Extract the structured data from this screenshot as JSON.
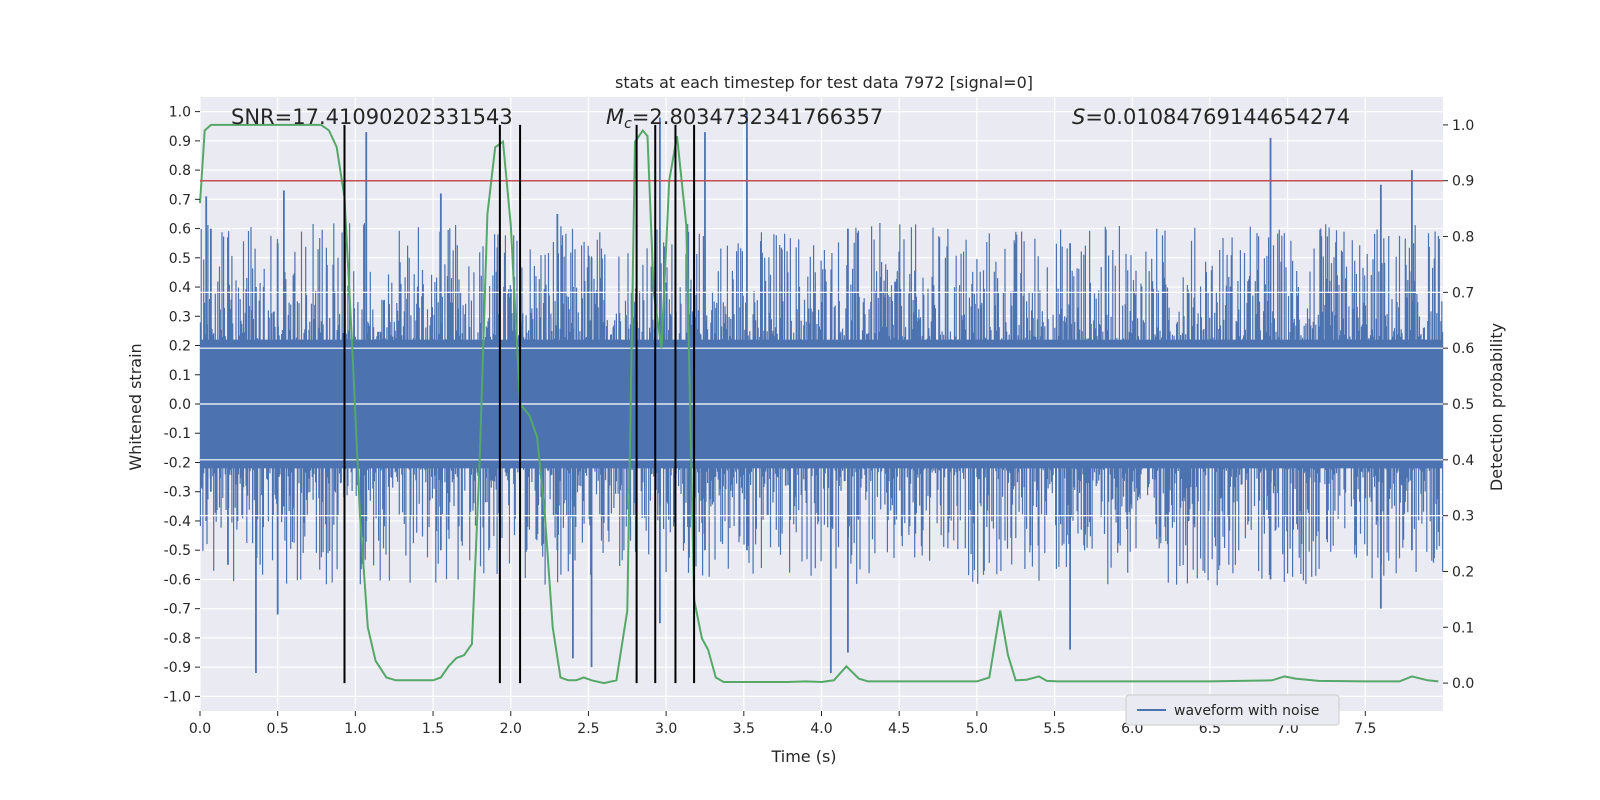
{
  "chart_data": {
    "type": "line",
    "title": "stats at each timestep for test data 7972 [signal=0]",
    "xlabel": "Time (s)",
    "ylabel_left": "Whitened strain",
    "ylabel_right": "Detection probability",
    "xlim": [
      0.0,
      8.0
    ],
    "ylim_left": [
      -1.05,
      1.05
    ],
    "ylim_right": [
      -0.05,
      1.05
    ],
    "xticks": [
      "0.0",
      "0.5",
      "1.0",
      "1.5",
      "2.0",
      "2.5",
      "3.0",
      "3.5",
      "4.0",
      "4.5",
      "5.0",
      "5.5",
      "6.0",
      "6.5",
      "7.0",
      "7.5"
    ],
    "yticks_left": [
      "-1.0",
      "-0.9",
      "-0.8",
      "-0.7",
      "-0.6",
      "-0.5",
      "-0.4",
      "-0.3",
      "-0.2",
      "-0.1",
      "0.0",
      "0.1",
      "0.2",
      "0.3",
      "0.4",
      "0.5",
      "0.6",
      "0.7",
      "0.8",
      "0.9",
      "1.0"
    ],
    "yticks_right": [
      "0.0",
      "0.1",
      "0.2",
      "0.3",
      "0.4",
      "0.5",
      "0.6",
      "0.7",
      "0.8",
      "0.9",
      "1.0"
    ],
    "annotations": {
      "snr": "SNR=17.41090202331543",
      "mc_symbol": "M",
      "mc_sub": "c",
      "mc_value": "=2.8034732341766357",
      "s_symbol": "S",
      "s_value": "=0.01084769144654274"
    },
    "threshold": 0.9,
    "event_lines": [
      0.93,
      1.93,
      2.06,
      2.81,
      2.93,
      3.06,
      3.18
    ],
    "waveform_spikes": [
      {
        "x": 0.04,
        "lo": -0.4,
        "hi": 0.71
      },
      {
        "x": 0.07,
        "lo": -0.3,
        "hi": 0.6
      },
      {
        "x": 0.18,
        "lo": -0.55,
        "hi": 0.57
      },
      {
        "x": 0.36,
        "lo": -0.92,
        "hi": 0.4
      },
      {
        "x": 0.5,
        "lo": -0.72,
        "hi": 0.55
      },
      {
        "x": 0.54,
        "lo": -0.35,
        "hi": 0.73
      },
      {
        "x": 1.07,
        "lo": -0.4,
        "hi": 0.93
      },
      {
        "x": 1.55,
        "lo": -0.5,
        "hi": 0.72
      },
      {
        "x": 2.3,
        "lo": -0.5,
        "hi": 0.65
      },
      {
        "x": 2.4,
        "lo": -0.87,
        "hi": 0.4
      },
      {
        "x": 2.52,
        "lo": -0.9,
        "hi": 0.5
      },
      {
        "x": 2.96,
        "lo": -0.75,
        "hi": 0.98
      },
      {
        "x": 3.18,
        "lo": -0.7,
        "hi": 0.72
      },
      {
        "x": 3.25,
        "lo": -0.5,
        "hi": 0.93
      },
      {
        "x": 3.52,
        "lo": -0.5,
        "hi": 1.0
      },
      {
        "x": 4.06,
        "lo": -0.92,
        "hi": 0.38
      },
      {
        "x": 4.17,
        "lo": -0.85,
        "hi": 0.6
      },
      {
        "x": 5.6,
        "lo": -0.84,
        "hi": 0.55
      },
      {
        "x": 6.89,
        "lo": -0.6,
        "hi": 0.91
      },
      {
        "x": 7.6,
        "lo": -0.7,
        "hi": 0.75
      },
      {
        "x": 7.8,
        "lo": -0.5,
        "hi": 0.8
      }
    ],
    "legend": {
      "label": "waveform with noise",
      "placement": "lower right"
    },
    "colors": {
      "waveform": "#4c72b0",
      "probability": "#55a868",
      "threshold": "#c44e52",
      "events": "#000000",
      "background": "#eaeaf2",
      "grid": "#ffffff"
    },
    "series": [
      {
        "axis": "right",
        "x": [
          0.0,
          0.03,
          0.07,
          0.13,
          0.2,
          0.3,
          0.4,
          0.5,
          0.6,
          0.7,
          0.78,
          0.83,
          0.88,
          0.93,
          0.98,
          1.03,
          1.08,
          1.13,
          1.2,
          1.26,
          1.33,
          1.42,
          1.5,
          1.55,
          1.6,
          1.65,
          1.7,
          1.75,
          1.8,
          1.85,
          1.9,
          1.95,
          2.0,
          2.06,
          2.12,
          2.17,
          2.22,
          2.27,
          2.32,
          2.37,
          2.42,
          2.47,
          2.52,
          2.6,
          2.68,
          2.75,
          2.8,
          2.85,
          2.88,
          2.92,
          2.97,
          3.02,
          3.07,
          3.13,
          3.18,
          3.23,
          3.27,
          3.32,
          3.37,
          3.42,
          3.48,
          3.55,
          3.65,
          3.78,
          3.9,
          4.0,
          4.08,
          4.16,
          4.24,
          4.3,
          4.4,
          4.6,
          4.8,
          5.0,
          5.08,
          5.15,
          5.2,
          5.25,
          5.32,
          5.4,
          5.45,
          5.52,
          5.6,
          5.8,
          6.0,
          6.5,
          6.9,
          6.98,
          7.05,
          7.2,
          7.5,
          7.65,
          7.72,
          7.8,
          7.9,
          7.97
        ],
        "values": [
          0.86,
          0.99,
          1.0,
          1.0,
          1.0,
          1.0,
          1.0,
          1.0,
          1.0,
          1.0,
          1.0,
          0.99,
          0.96,
          0.87,
          0.6,
          0.3,
          0.1,
          0.04,
          0.01,
          0.005,
          0.005,
          0.005,
          0.005,
          0.01,
          0.03,
          0.045,
          0.05,
          0.07,
          0.4,
          0.84,
          0.96,
          0.97,
          0.82,
          0.5,
          0.48,
          0.44,
          0.3,
          0.1,
          0.01,
          0.005,
          0.005,
          0.01,
          0.005,
          0.0,
          0.005,
          0.13,
          0.97,
          0.99,
          0.98,
          0.7,
          0.6,
          0.9,
          0.98,
          0.82,
          0.15,
          0.08,
          0.06,
          0.01,
          0.002,
          0.002,
          0.002,
          0.002,
          0.002,
          0.002,
          0.003,
          0.002,
          0.005,
          0.03,
          0.008,
          0.003,
          0.003,
          0.003,
          0.003,
          0.003,
          0.01,
          0.13,
          0.05,
          0.005,
          0.006,
          0.012,
          0.004,
          0.003,
          0.003,
          0.003,
          0.003,
          0.003,
          0.005,
          0.012,
          0.008,
          0.004,
          0.003,
          0.003,
          0.003,
          0.012,
          0.005,
          0.003
        ]
      }
    ]
  }
}
